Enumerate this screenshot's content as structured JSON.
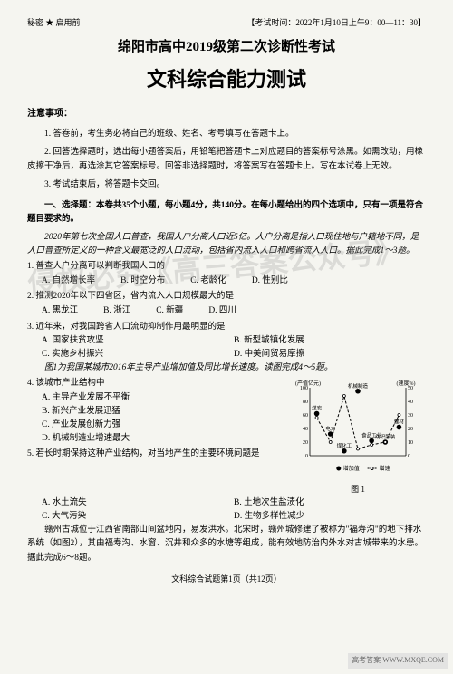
{
  "header": {
    "secret": "秘密 ★ 启用前",
    "exam_time": "【考试时间：2022年1月10日上午9：00—11：30】"
  },
  "title1": "绵阳市高中2019级第二次诊断性考试",
  "title2": "文科综合能力测试",
  "notice_label": "注意事项：",
  "notices": {
    "n1": "1. 答卷前，考生务必将自己的班级、姓名、考号填写在答题卡上。",
    "n2": "2. 回答选择题时，选出每小题答案后，用铅笔把答题卡上对应题目的答案标号涂黑。如需改动，用橡皮擦干净后，再选涂其它答案标号。回答非选择题时，将答案写在答题卡上。写在本试卷上无效。",
    "n3": "3. 考试结束后，将答题卡交回。"
  },
  "section1_intro": "一、选择题：本卷共35个小题，每小题4分，共140分。在每小题给出的四个选项中，只有一项是符合题目要求的。",
  "passage1": "2020年第七次全国人口普查，我国人户分离人口近5亿。人户分离是指人口现住地与户籍地不同，是人口普查所定义的一种含义最宽泛的人口流动，包括省内流入人口和跨省流入人口。据此完成1～3题。",
  "q1": {
    "stem": "1. 普查人户分离可以判断我国人口的",
    "a": "A. 自然增长率",
    "b": "B. 时空分布",
    "c": "C. 老龄化",
    "d": "D. 性别比"
  },
  "q2": {
    "stem": "2. 推测2020年以下四省区，省内流入人口规模最大的是",
    "a": "A. 黑龙江",
    "b": "B. 浙江",
    "c": "C. 新疆",
    "d": "D. 四川"
  },
  "q3": {
    "stem": "3. 近年来，对我国跨省人口流动抑制作用最明显的是",
    "a": "A. 国家扶贫攻坚",
    "b": "B. 新型城镇化发展",
    "c": "C. 实施乡村振兴",
    "d": "D. 中美间贸易摩擦"
  },
  "passage2": "图1为我国某城市2016年主导产业增加值及同比增长速度。读图完成4～5题。",
  "q4": {
    "stem": "4. 该城市产业结构中",
    "a": "A. 主导产业发展不平衡",
    "b": "B. 新兴产业发展迅猛",
    "c": "C. 产业发展创新力强",
    "d": "D. 机械制造业增速最大"
  },
  "q5": {
    "stem": "5. 若长时期保持这种产业结构，对当地产生的主要环境问题是",
    "a": "A. 水土流失",
    "b": "B. 土地次生盐渍化",
    "c": "C. 大气污染",
    "d": "D. 生物多样性减少"
  },
  "passage3": "赣州古城位于江西省南部山间盆地内，易发洪水。北宋时，赣州城修建了被称为\"福寿沟\"的地下排水系统（如图2），其由福寿沟、水窗、沉井和众多的水塘等组成，能有效地防治内外水对古城带来的水患。据此完成6～8题。",
  "chart": {
    "y_left_label": "(产值亿元)",
    "y_right_label": "(速度%)",
    "y_left_ticks": [
      "100",
      "80",
      "60",
      "40",
      "20",
      "0"
    ],
    "y_right_ticks": [
      "50",
      "40",
      "30",
      "20",
      "10",
      "0"
    ],
    "x_labels": [
      "煤炭",
      "电力",
      "煤化工",
      "机械制造",
      "食品工业",
      "纺织服装",
      "建材"
    ],
    "legend": {
      "bar": "增加值",
      "line": "增速"
    },
    "bar_values": [
      62,
      32,
      7,
      95,
      22,
      20,
      42
    ],
    "line_values": [
      28,
      10,
      44,
      5,
      8,
      10,
      30
    ],
    "colors": {
      "bar_fill": "#000000",
      "line_color": "#000000",
      "axis_color": "#000000",
      "bg": "#f5f5f0"
    },
    "caption": "图 1"
  },
  "footer": "文科综合试题第1页（共12页）",
  "watermark": "侵权必究《高三答案公众号》",
  "corner": "高考答案\nWWW.MXQE.COM"
}
